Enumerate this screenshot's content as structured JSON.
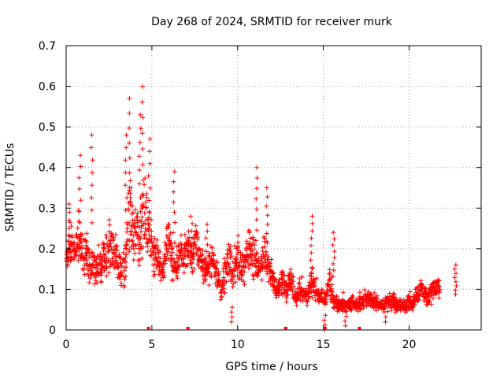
{
  "chart_data": {
    "type": "scatter",
    "title": "Day 268 of 2024, SRMTID for receiver murk",
    "xlabel": "GPS time / hours",
    "ylabel": "SRMTID / TECUs",
    "xlim": [
      0,
      24.2
    ],
    "ylim": [
      0,
      0.7
    ],
    "x_ticks": [
      0,
      5,
      10,
      15,
      20
    ],
    "x_tick_labels": [
      "0",
      "5",
      "10",
      "15",
      "20"
    ],
    "y_ticks": [
      0,
      0.1,
      0.2,
      0.3,
      0.4,
      0.5,
      0.6,
      0.7
    ],
    "y_tick_labels": [
      "0",
      "0.1",
      "0.2",
      "0.3",
      "0.4",
      "0.5",
      "0.6",
      "0.7"
    ],
    "grid": true,
    "marker": "+",
    "color": "#ff0000",
    "x_markers": [
      4.8,
      7.1,
      12.8,
      15.1,
      17.1
    ],
    "series": [
      {
        "name": "SRMTID",
        "x_start": 0.0,
        "x_step": 0.1,
        "median": [
          0.17,
          0.2,
          0.22,
          0.21,
          0.2,
          0.19,
          0.22,
          0.24,
          0.21,
          0.2,
          0.18,
          0.19,
          0.17,
          0.16,
          0.15,
          0.16,
          0.17,
          0.15,
          0.16,
          0.17,
          0.16,
          0.18,
          0.17,
          0.18,
          0.19,
          0.21,
          0.21,
          0.2,
          0.19,
          0.18,
          0.16,
          0.16,
          0.15,
          0.15,
          0.17,
          0.22,
          0.26,
          0.28,
          0.27,
          0.25,
          0.26,
          0.24,
          0.23,
          0.22,
          0.25,
          0.3,
          0.28,
          0.25,
          0.24,
          0.22,
          0.19,
          0.18,
          0.18,
          0.17,
          0.16,
          0.15,
          0.15,
          0.17,
          0.2,
          0.22,
          0.21,
          0.18,
          0.15,
          0.14,
          0.15,
          0.17,
          0.19,
          0.19,
          0.18,
          0.19,
          0.2,
          0.2,
          0.19,
          0.18,
          0.2,
          0.22,
          0.21,
          0.18,
          0.17,
          0.16,
          0.15,
          0.14,
          0.15,
          0.16,
          0.16,
          0.17,
          0.16,
          0.15,
          0.13,
          0.12,
          0.1,
          0.12,
          0.14,
          0.16,
          0.17,
          0.17,
          0.15,
          0.14,
          0.16,
          0.17,
          0.18,
          0.17,
          0.15,
          0.16,
          0.17,
          0.19,
          0.2,
          0.19,
          0.19,
          0.18,
          0.16,
          0.15,
          0.15,
          0.16,
          0.17,
          0.18,
          0.17,
          0.15,
          0.14,
          0.13,
          0.12,
          0.11,
          0.1,
          0.09,
          0.11,
          0.12,
          0.12,
          0.11,
          0.1,
          0.11,
          0.12,
          0.12,
          0.1,
          0.09,
          0.08,
          0.09,
          0.1,
          0.1,
          0.09,
          0.09,
          0.08,
          0.1,
          0.11,
          0.13,
          0.12,
          0.1,
          0.09,
          0.09,
          0.08,
          0.08,
          0.08,
          0.08,
          0.1,
          0.12,
          0.1,
          0.08,
          0.07,
          0.07,
          0.06,
          0.06,
          0.06,
          0.07,
          0.06,
          0.06,
          0.06,
          0.06,
          0.07,
          0.07,
          0.06,
          0.06,
          0.06,
          0.07,
          0.07,
          0.07,
          0.08,
          0.08,
          0.08,
          0.08,
          0.07,
          0.07,
          0.07,
          0.07,
          0.06,
          0.06,
          0.06,
          0.06,
          0.07,
          0.07,
          0.07,
          0.06,
          0.07,
          0.07,
          0.06,
          0.06,
          0.06,
          0.06,
          0.06,
          0.06,
          0.06,
          0.07,
          0.07,
          0.07,
          0.07,
          0.08,
          0.09,
          0.09,
          0.1,
          0.1,
          0.09,
          0.09,
          0.08,
          0.08,
          0.09,
          0.1,
          0.1,
          0.11,
          0.11,
          0.1
        ],
        "spread": [
          0.05,
          0.07,
          0.08,
          0.08,
          0.07,
          0.07,
          0.08,
          0.09,
          0.08,
          0.07,
          0.07,
          0.07,
          0.07,
          0.07,
          0.06,
          0.06,
          0.07,
          0.07,
          0.07,
          0.08,
          0.08,
          0.07,
          0.07,
          0.08,
          0.08,
          0.09,
          0.09,
          0.08,
          0.08,
          0.07,
          0.06,
          0.06,
          0.06,
          0.06,
          0.07,
          0.09,
          0.11,
          0.12,
          0.12,
          0.11,
          0.11,
          0.1,
          0.1,
          0.1,
          0.12,
          0.14,
          0.13,
          0.1,
          0.09,
          0.07,
          0.06,
          0.06,
          0.06,
          0.06,
          0.06,
          0.06,
          0.06,
          0.07,
          0.07,
          0.07,
          0.07,
          0.06,
          0.05,
          0.05,
          0.06,
          0.06,
          0.06,
          0.06,
          0.06,
          0.06,
          0.07,
          0.07,
          0.06,
          0.06,
          0.07,
          0.07,
          0.07,
          0.06,
          0.06,
          0.06,
          0.05,
          0.05,
          0.05,
          0.06,
          0.06,
          0.06,
          0.06,
          0.05,
          0.05,
          0.05,
          0.05,
          0.05,
          0.06,
          0.07,
          0.07,
          0.07,
          0.06,
          0.06,
          0.06,
          0.07,
          0.07,
          0.07,
          0.06,
          0.06,
          0.07,
          0.08,
          0.09,
          0.08,
          0.08,
          0.07,
          0.06,
          0.06,
          0.06,
          0.06,
          0.07,
          0.07,
          0.07,
          0.06,
          0.05,
          0.05,
          0.04,
          0.04,
          0.04,
          0.04,
          0.04,
          0.05,
          0.05,
          0.04,
          0.04,
          0.04,
          0.04,
          0.04,
          0.04,
          0.03,
          0.03,
          0.03,
          0.04,
          0.04,
          0.03,
          0.03,
          0.03,
          0.04,
          0.05,
          0.06,
          0.05,
          0.04,
          0.03,
          0.03,
          0.03,
          0.03,
          0.03,
          0.03,
          0.04,
          0.05,
          0.04,
          0.03,
          0.03,
          0.03,
          0.02,
          0.02,
          0.02,
          0.03,
          0.02,
          0.02,
          0.02,
          0.02,
          0.03,
          0.03,
          0.02,
          0.02,
          0.02,
          0.03,
          0.03,
          0.03,
          0.03,
          0.03,
          0.03,
          0.03,
          0.03,
          0.03,
          0.03,
          0.03,
          0.02,
          0.02,
          0.02,
          0.02,
          0.03,
          0.03,
          0.03,
          0.02,
          0.03,
          0.03,
          0.02,
          0.02,
          0.02,
          0.02,
          0.02,
          0.02,
          0.02,
          0.03,
          0.03,
          0.03,
          0.03,
          0.03,
          0.03,
          0.03,
          0.03,
          0.03,
          0.03,
          0.03,
          0.03,
          0.03,
          0.03,
          0.03,
          0.03,
          0.03,
          0.03,
          0.03
        ],
        "peaks": [
          {
            "x": 0.2,
            "y": 0.31
          },
          {
            "x": 0.8,
            "y": 0.43
          },
          {
            "x": 1.5,
            "y": 0.48
          },
          {
            "x": 3.5,
            "y": 0.48
          },
          {
            "x": 3.7,
            "y": 0.57
          },
          {
            "x": 4.3,
            "y": 0.53
          },
          {
            "x": 4.45,
            "y": 0.6
          },
          {
            "x": 4.85,
            "y": 0.47
          },
          {
            "x": 6.3,
            "y": 0.39
          },
          {
            "x": 7.3,
            "y": 0.28
          },
          {
            "x": 8.2,
            "y": 0.26
          },
          {
            "x": 11.1,
            "y": 0.4
          },
          {
            "x": 11.7,
            "y": 0.35
          },
          {
            "x": 14.3,
            "y": 0.28
          },
          {
            "x": 15.6,
            "y": 0.24
          },
          {
            "x": 22.7,
            "y": 0.16
          }
        ],
        "troughs": [
          {
            "x": 9.7,
            "y": 0.02
          },
          {
            "x": 15.1,
            "y": 0.0
          },
          {
            "x": 16.3,
            "y": 0.01
          },
          {
            "x": 18.6,
            "y": 0.02
          }
        ]
      }
    ]
  }
}
